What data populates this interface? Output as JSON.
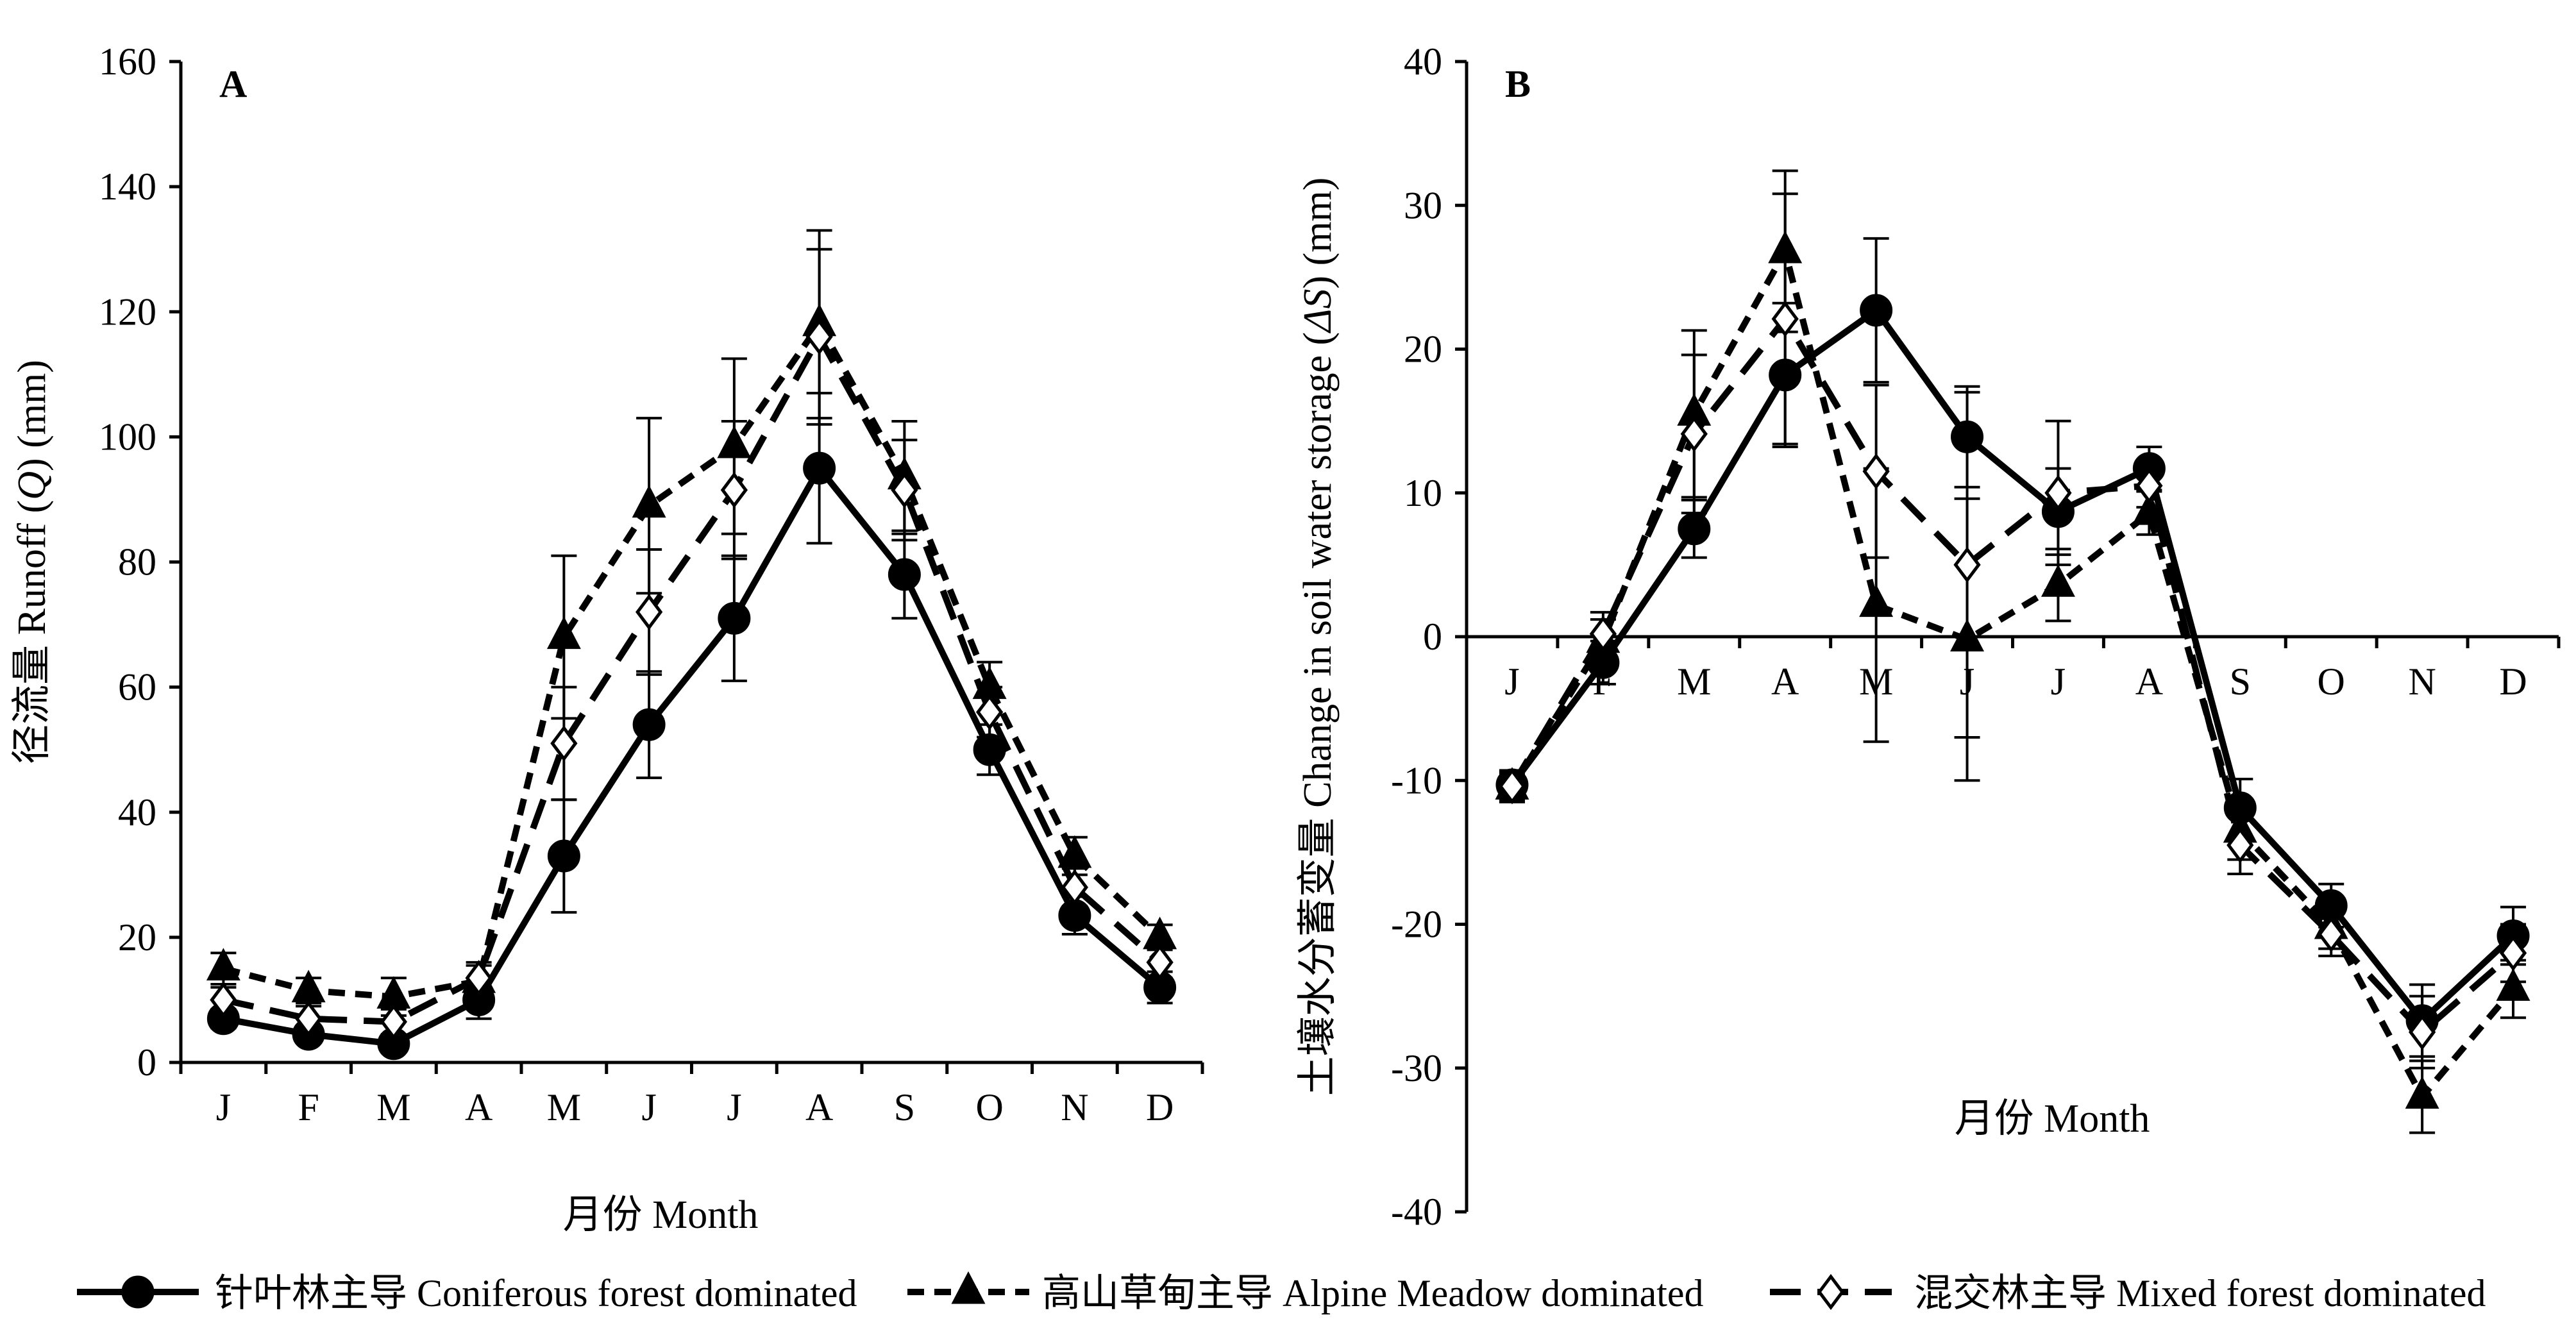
{
  "chart_data": [
    {
      "panel_label": "A",
      "type": "line",
      "xlabel": "月份  Month",
      "ylabel": "径流量 Runoff (Q) (mm)",
      "ylabel_parts": [
        "径流量 Runoff (",
        "Q",
        ") (mm)"
      ],
      "categories": [
        "J",
        "F",
        "M",
        "A",
        "M",
        "J",
        "J",
        "A",
        "S",
        "O",
        "N",
        "D"
      ],
      "ylim": [
        0,
        160
      ],
      "yticks": [
        0,
        20,
        40,
        60,
        80,
        100,
        120,
        140,
        160
      ],
      "grid": false,
      "series": [
        {
          "name": "针叶林主导 Coniferous forest dominated",
          "values": [
            7,
            4.5,
            3,
            10,
            33,
            54,
            71,
            95,
            78,
            50,
            23.5,
            12
          ],
          "errors": [
            1.5,
            1,
            1,
            3,
            9,
            8.5,
            10,
            12,
            7,
            4,
            3,
            2.5
          ]
        },
        {
          "name": "高山草甸主导 Alpine Meadow dominated",
          "values": [
            15,
            11.5,
            10.5,
            13,
            68,
            89,
            98.5,
            118,
            93.5,
            60,
            33,
            20
          ],
          "errors": [
            2.5,
            2,
            3,
            3,
            13,
            14,
            14,
            15,
            9,
            4,
            3,
            2
          ]
        },
        {
          "name": "混交林主导 Mixed forest dominated",
          "values": [
            10,
            7,
            6.5,
            13.5,
            51,
            72,
            91.5,
            116,
            91.5,
            56,
            28,
            16
          ],
          "errors": [
            2,
            2,
            2,
            2,
            9,
            10,
            11,
            14,
            8,
            4,
            3,
            2.5
          ]
        }
      ]
    },
    {
      "panel_label": "B",
      "type": "line",
      "xlabel": "月份  Month",
      "ylabel": "土壤水分蓄变量 Change in soil water storage (ΔS) (mm)",
      "ylabel_parts": [
        "土壤水分蓄变量 Change in soil water storage (",
        "ΔS",
        ") (mm)"
      ],
      "categories": [
        "J",
        "F",
        "M",
        "A",
        "M",
        "J",
        "J",
        "A",
        "S",
        "O",
        "N",
        "D"
      ],
      "ylim": [
        -40,
        40
      ],
      "yticks": [
        -40,
        -30,
        -20,
        -10,
        0,
        10,
        20,
        30,
        40
      ],
      "grid": false,
      "series": [
        {
          "name": "针叶林主导 Coniferous forest dominated",
          "values": [
            -10.3,
            -1.8,
            7.5,
            18.2,
            22.7,
            13.9,
            8.7,
            11.7,
            -11.9,
            -18.7,
            -26.7,
            -20.8
          ],
          "errors": [
            1,
            1.5,
            2,
            5,
            5,
            3.5,
            3,
            1.5,
            2,
            1.5,
            2.5,
            2
          ]
        },
        {
          "name": "高山草甸主导 Alpine Meadow dominated",
          "values": [
            -10.5,
            -0.3,
            15.5,
            26.8,
            2.2,
            -0.2,
            3.6,
            8.6,
            -13.5,
            -20.2,
            -32,
            -24.5
          ],
          "errors": [
            1,
            1.5,
            5.8,
            5.6,
            9.5,
            9.8,
            2.5,
            1.5,
            2,
            1.5,
            2.5,
            2
          ]
        },
        {
          "name": "混交林主导 Mixed forest dominated",
          "values": [
            -10.4,
            0.2,
            14.1,
            22.1,
            11.5,
            5,
            10,
            10.5,
            -14.5,
            -20.7,
            -27.5,
            -22
          ],
          "errors": [
            1,
            1.5,
            5.5,
            8.7,
            6,
            12,
            5,
            1.5,
            2,
            1.5,
            2.5,
            2
          ]
        }
      ]
    }
  ],
  "legend": {
    "placement": "bottom",
    "items": [
      "针叶林主导 Coniferous forest dominated",
      "高山草甸主导 Alpine Meadow dominated",
      "混交林主导 Mixed forest dominated"
    ]
  }
}
